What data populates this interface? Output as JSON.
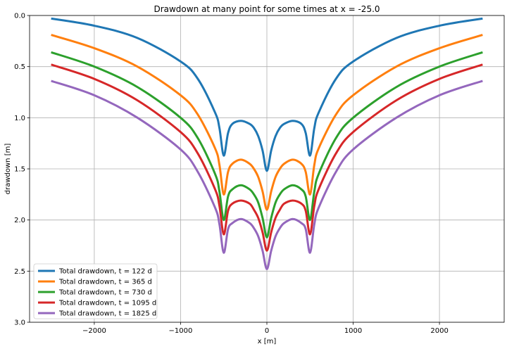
{
  "chart_data": {
    "type": "line",
    "title": "Drawdown at many point for some times at x = -25.0",
    "xlabel": "x [m]",
    "ylabel": "drawdown [m]",
    "xlim": [
      -2750,
      2750
    ],
    "ylim": [
      3.0,
      0.0
    ],
    "y_inverted": true,
    "grid": true,
    "legend_position": "lower-left",
    "x_ticks": [
      -2000,
      -1000,
      0,
      1000,
      2000
    ],
    "x_tick_labels": [
      "−2000",
      "−1000",
      "0",
      "1000",
      "2000"
    ],
    "y_ticks": [
      0.0,
      0.5,
      1.0,
      1.5,
      2.0,
      2.5,
      3.0
    ],
    "y_tick_labels": [
      "0.0",
      "0.5",
      "1.0",
      "1.5",
      "2.0",
      "2.5",
      "3.0"
    ],
    "x": [
      -2500,
      -2000,
      -1500,
      -1000,
      -800,
      -600,
      -550,
      -500,
      -450,
      -400,
      -300,
      -200,
      -150,
      -100,
      -50,
      0,
      50,
      100,
      150,
      200,
      300,
      400,
      450,
      500,
      550,
      600,
      800,
      1000,
      1500,
      2000,
      2500
    ],
    "series": [
      {
        "name": "Total drawdown, t = 122 d",
        "color": "#1f77b4",
        "values": [
          0.03,
          0.1,
          0.22,
          0.45,
          0.62,
          0.95,
          1.1,
          1.37,
          1.15,
          1.06,
          1.03,
          1.06,
          1.1,
          1.18,
          1.32,
          1.52,
          1.32,
          1.18,
          1.1,
          1.06,
          1.03,
          1.06,
          1.15,
          1.37,
          1.1,
          0.95,
          0.62,
          0.45,
          0.22,
          0.1,
          0.03
        ]
      },
      {
        "name": "Total drawdown, t = 365 d",
        "color": "#ff7f0e",
        "values": [
          0.19,
          0.32,
          0.5,
          0.78,
          0.97,
          1.3,
          1.46,
          1.75,
          1.53,
          1.45,
          1.41,
          1.45,
          1.5,
          1.58,
          1.72,
          1.9,
          1.72,
          1.58,
          1.5,
          1.45,
          1.41,
          1.45,
          1.53,
          1.75,
          1.46,
          1.3,
          0.97,
          0.78,
          0.5,
          0.32,
          0.19
        ]
      },
      {
        "name": "Total drawdown, t = 730 d",
        "color": "#2ca02c",
        "values": [
          0.36,
          0.5,
          0.7,
          1.0,
          1.2,
          1.55,
          1.72,
          2.0,
          1.77,
          1.7,
          1.66,
          1.7,
          1.75,
          1.83,
          1.98,
          2.17,
          1.98,
          1.83,
          1.75,
          1.7,
          1.66,
          1.7,
          1.77,
          2.0,
          1.72,
          1.55,
          1.2,
          1.0,
          0.7,
          0.5,
          0.36
        ]
      },
      {
        "name": "Total drawdown, t = 1095 d",
        "color": "#d62728",
        "values": [
          0.48,
          0.62,
          0.83,
          1.14,
          1.35,
          1.7,
          1.86,
          2.14,
          1.91,
          1.84,
          1.81,
          1.84,
          1.9,
          1.98,
          2.12,
          2.3,
          2.12,
          1.98,
          1.9,
          1.84,
          1.81,
          1.84,
          1.91,
          2.14,
          1.86,
          1.7,
          1.35,
          1.14,
          0.83,
          0.62,
          0.48
        ]
      },
      {
        "name": "Total drawdown, t = 1825 d",
        "color": "#9467bd",
        "values": [
          0.64,
          0.78,
          1.0,
          1.31,
          1.53,
          1.88,
          2.04,
          2.32,
          2.09,
          2.03,
          1.99,
          2.03,
          2.08,
          2.16,
          2.3,
          2.48,
          2.3,
          2.16,
          2.08,
          2.03,
          1.99,
          2.03,
          2.09,
          2.32,
          2.04,
          1.88,
          1.53,
          1.31,
          1.0,
          0.78,
          0.64
        ]
      }
    ]
  }
}
